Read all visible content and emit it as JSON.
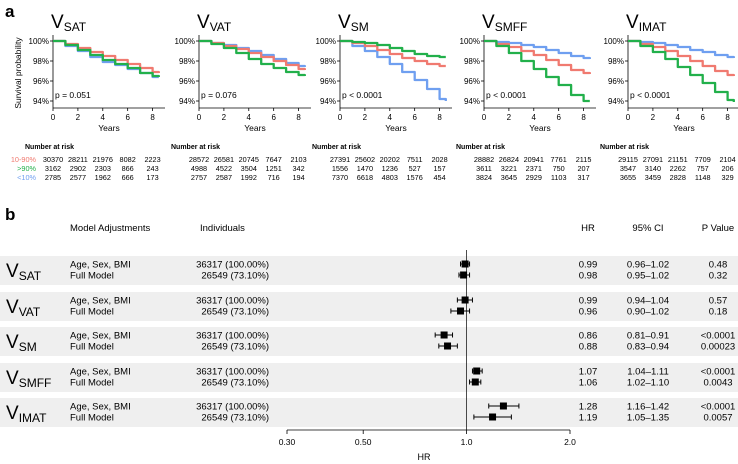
{
  "panel_labels": {
    "a": "a",
    "b": "b"
  },
  "colors": {
    "mid": "#f07a70",
    "high": "#22b04b",
    "low": "#6f9ff0"
  },
  "panel_a": {
    "y_axis_label": "Survival probability",
    "x_axis_label": "Years",
    "risk_title": "Number at risk",
    "legend_labels": [
      "10-90%",
      ">90%",
      "<10%"
    ],
    "y_ticks": [
      "100%",
      "98%",
      "96%",
      "94%"
    ],
    "x_ticks": [
      "0",
      "2",
      "4",
      "6",
      "8"
    ]
  },
  "chart_data": [
    {
      "type": "line",
      "name": "SAT",
      "title": "V",
      "subscript": "SAT",
      "pvalue": "p = 0.051",
      "xlabel": "Years",
      "ylabel": "Survival probability",
      "xlim": [
        0,
        9
      ],
      "ylim": [
        93.5,
        100.2
      ],
      "series": [
        {
          "name": "10-90%",
          "x": [
            0,
            1,
            2,
            3,
            4,
            5,
            6,
            7,
            8,
            8.5
          ],
          "y": [
            100,
            99.7,
            99.3,
            98.9,
            98.5,
            98.1,
            97.7,
            97.3,
            96.9,
            96.8
          ]
        },
        {
          "name": ">90%",
          "x": [
            0,
            1,
            2,
            3,
            4,
            5,
            6,
            7,
            8,
            8.5
          ],
          "y": [
            100,
            99.6,
            99.1,
            98.6,
            98.1,
            97.7,
            97.3,
            96.8,
            96.5,
            96.4
          ]
        },
        {
          "name": "<10%",
          "x": [
            0,
            1,
            2,
            3,
            4,
            5,
            6,
            7,
            8,
            8.5
          ],
          "y": [
            100,
            99.5,
            99.0,
            98.4,
            97.9,
            97.6,
            97.2,
            96.8,
            96.4,
            96.4
          ]
        }
      ],
      "risk_table": [
        [
          "30370",
          "28211",
          "21976",
          "8082",
          "2223"
        ],
        [
          "3162",
          "2902",
          "2303",
          "866",
          "243"
        ],
        [
          "2785",
          "2577",
          "1962",
          "666",
          "173"
        ]
      ]
    },
    {
      "type": "line",
      "name": "VAT",
      "title": "V",
      "subscript": "VAT",
      "pvalue": "p = 0.076",
      "xlabel": "Years",
      "ylabel": "Survival probability",
      "xlim": [
        0,
        9
      ],
      "ylim": [
        93.5,
        100.2
      ],
      "series": [
        {
          "name": "10-90%",
          "x": [
            0,
            1,
            2,
            3,
            4,
            5,
            6,
            7,
            8,
            8.5
          ],
          "y": [
            100,
            99.8,
            99.5,
            99.2,
            98.8,
            98.4,
            98.0,
            97.6,
            97.2,
            97.1
          ]
        },
        {
          "name": ">90%",
          "x": [
            0,
            1,
            2,
            3,
            4,
            5,
            6,
            7,
            8,
            8.5
          ],
          "y": [
            100,
            99.7,
            99.3,
            98.8,
            98.2,
            97.7,
            97.3,
            96.9,
            96.6,
            96.5
          ]
        },
        {
          "name": "<10%",
          "x": [
            0,
            1,
            2,
            3,
            4,
            5,
            6,
            7,
            8,
            8.5
          ],
          "y": [
            100,
            99.8,
            99.6,
            99.3,
            99.0,
            98.6,
            98.2,
            97.8,
            97.5,
            97.4
          ]
        }
      ],
      "risk_table": [
        [
          "28572",
          "26581",
          "20745",
          "7647",
          "2103"
        ],
        [
          "4988",
          "4522",
          "3504",
          "1251",
          "342"
        ],
        [
          "2757",
          "2587",
          "1992",
          "716",
          "194"
        ]
      ]
    },
    {
      "type": "line",
      "name": "SM",
      "title": "V",
      "subscript": "SM",
      "pvalue": "p < 0.0001",
      "xlabel": "Years",
      "ylabel": "Survival probability",
      "xlim": [
        0,
        9
      ],
      "ylim": [
        93.5,
        100.2
      ],
      "series": [
        {
          "name": "10-90%",
          "x": [
            0,
            1,
            2,
            3,
            4,
            5,
            6,
            7,
            8,
            8.5
          ],
          "y": [
            100,
            99.8,
            99.5,
            99.1,
            98.7,
            98.3,
            98.0,
            97.7,
            97.5,
            97.5
          ]
        },
        {
          "name": ">90%",
          "x": [
            0,
            1,
            2,
            3,
            4,
            5,
            6,
            7,
            8,
            8.5
          ],
          "y": [
            100,
            99.9,
            99.8,
            99.6,
            99.3,
            99.0,
            98.7,
            98.5,
            98.4,
            98.4
          ]
        },
        {
          "name": "<10%",
          "x": [
            0,
            1,
            2,
            3,
            4,
            5,
            6,
            7,
            8,
            8.5
          ],
          "y": [
            100,
            99.5,
            99.0,
            98.4,
            97.7,
            96.9,
            96.1,
            95.2,
            94.2,
            94.0
          ]
        }
      ],
      "risk_table": [
        [
          "27391",
          "25602",
          "20202",
          "7511",
          "2028"
        ],
        [
          "1556",
          "1470",
          "1236",
          "527",
          "157"
        ],
        [
          "7370",
          "6618",
          "4803",
          "1576",
          "454"
        ]
      ]
    },
    {
      "type": "line",
      "name": "SMFF",
      "title": "V",
      "subscript": "SMFF",
      "pvalue": "p < 0.0001",
      "xlabel": "Years",
      "ylabel": "Survival probability",
      "xlim": [
        0,
        9
      ],
      "ylim": [
        93.5,
        100.2
      ],
      "series": [
        {
          "name": "10-90%",
          "x": [
            0,
            1,
            2,
            3,
            4,
            5,
            6,
            7,
            8,
            8.5
          ],
          "y": [
            100,
            99.7,
            99.4,
            99.0,
            98.6,
            98.1,
            97.6,
            97.1,
            96.8,
            96.7
          ]
        },
        {
          "name": ">90%",
          "x": [
            0,
            1,
            2,
            3,
            4,
            5,
            6,
            7,
            8,
            8.5
          ],
          "y": [
            100,
            99.5,
            98.8,
            98.0,
            97.2,
            96.4,
            95.6,
            94.6,
            94.0,
            94.0
          ]
        },
        {
          "name": "<10%",
          "x": [
            0,
            1,
            2,
            3,
            4,
            5,
            6,
            7,
            8,
            8.5
          ],
          "y": [
            100,
            99.9,
            99.8,
            99.6,
            99.4,
            99.1,
            98.8,
            98.5,
            98.3,
            98.2
          ]
        }
      ],
      "risk_table": [
        [
          "28882",
          "26824",
          "20941",
          "7761",
          "2115"
        ],
        [
          "3611",
          "3221",
          "2371",
          "750",
          "207"
        ],
        [
          "3824",
          "3645",
          "2929",
          "1103",
          "317"
        ]
      ]
    },
    {
      "type": "line",
      "name": "IMAT",
      "title": "V",
      "subscript": "IMAT",
      "pvalue": "p < 0.0001",
      "xlabel": "Years",
      "ylabel": "Survival probability",
      "xlim": [
        0,
        9
      ],
      "ylim": [
        93.5,
        100.2
      ],
      "series": [
        {
          "name": "10-90%",
          "x": [
            0,
            1,
            2,
            3,
            4,
            5,
            6,
            7,
            8,
            8.5
          ],
          "y": [
            100,
            99.7,
            99.4,
            99.0,
            98.5,
            98.0,
            97.5,
            97.0,
            96.6,
            96.5
          ]
        },
        {
          "name": ">90%",
          "x": [
            0,
            1,
            2,
            3,
            4,
            5,
            6,
            7,
            8,
            8.5
          ],
          "y": [
            100,
            99.5,
            98.9,
            98.2,
            97.4,
            96.6,
            95.8,
            94.9,
            94.1,
            93.9
          ]
        },
        {
          "name": "<10%",
          "x": [
            0,
            1,
            2,
            3,
            4,
            5,
            6,
            7,
            8,
            8.5
          ],
          "y": [
            100,
            99.9,
            99.8,
            99.6,
            99.4,
            99.1,
            98.9,
            98.6,
            98.4,
            98.3
          ]
        }
      ],
      "risk_table": [
        [
          "29115",
          "27091",
          "21151",
          "7709",
          "2104"
        ],
        [
          "3547",
          "3140",
          "2262",
          "757",
          "206"
        ],
        [
          "3655",
          "3459",
          "2828",
          "1148",
          "329"
        ]
      ]
    },
    {
      "type": "scatter",
      "name": "forest",
      "headers": {
        "model": "Model Adjustments",
        "individuals": "Individuals",
        "hr": "HR",
        "ci": "95% CI",
        "p": "P Value"
      },
      "xlabel": "HR",
      "x_scale": "log",
      "xlim": [
        0.3,
        2.0
      ],
      "x_ticks": [
        0.3,
        0.5,
        1.0,
        2.0
      ],
      "x_tick_labels": [
        "0.30",
        "0.50",
        "1.0",
        "2.0"
      ],
      "reference_line": 1.0,
      "groups": [
        {
          "title": "V",
          "subscript": "SAT",
          "rows": [
            {
              "model": "Age, Sex, BMI",
              "individuals": "36317 (100.00%)",
              "hr": 0.99,
              "lo": 0.96,
              "hi": 1.02,
              "hr_text": "0.99",
              "ci_text": "0.96–1.02",
              "p": "0.48"
            },
            {
              "model": "Full Model",
              "individuals": "26549 (73.10%)",
              "hr": 0.98,
              "lo": 0.95,
              "hi": 1.02,
              "hr_text": "0.98",
              "ci_text": "0.95–1.02",
              "p": "0.32"
            }
          ]
        },
        {
          "title": "V",
          "subscript": "VAT",
          "rows": [
            {
              "model": "Age, Sex, BMI",
              "individuals": "36317 (100.00%)",
              "hr": 0.99,
              "lo": 0.94,
              "hi": 1.04,
              "hr_text": "0.99",
              "ci_text": "0.94–1.04",
              "p": "0.57"
            },
            {
              "model": "Full Model",
              "individuals": "26549 (73.10%)",
              "hr": 0.96,
              "lo": 0.9,
              "hi": 1.02,
              "hr_text": "0.96",
              "ci_text": "0.90–1.02",
              "p": "0.18"
            }
          ]
        },
        {
          "title": "V",
          "subscript": "SM",
          "rows": [
            {
              "model": "Age, Sex, BMI",
              "individuals": "36317 (100.00%)",
              "hr": 0.86,
              "lo": 0.81,
              "hi": 0.91,
              "hr_text": "0.86",
              "ci_text": "0.81–0.91",
              "p": "<0.0001"
            },
            {
              "model": "Full Model",
              "individuals": "26549 (73.10%)",
              "hr": 0.88,
              "lo": 0.83,
              "hi": 0.94,
              "hr_text": "0.88",
              "ci_text": "0.83–0.94",
              "p": "0.00023"
            }
          ]
        },
        {
          "title": "V",
          "subscript": "SMFF",
          "rows": [
            {
              "model": "Age, Sex, BMI",
              "individuals": "36317 (100.00%)",
              "hr": 1.07,
              "lo": 1.04,
              "hi": 1.11,
              "hr_text": "1.07",
              "ci_text": "1.04–1.11",
              "p": "<0.0001"
            },
            {
              "model": "Full Model",
              "individuals": "26549 (73.10%)",
              "hr": 1.06,
              "lo": 1.02,
              "hi": 1.1,
              "hr_text": "1.06",
              "ci_text": "1.02–1.10",
              "p": "0.0043"
            }
          ]
        },
        {
          "title": "V",
          "subscript": "IMAT",
          "rows": [
            {
              "model": "Age, Sex, BMI",
              "individuals": "36317 (100.00%)",
              "hr": 1.28,
              "lo": 1.16,
              "hi": 1.42,
              "hr_text": "1.28",
              "ci_text": "1.16–1.42",
              "p": "<0.0001"
            },
            {
              "model": "Full Model",
              "individuals": "26549 (73.10%)",
              "hr": 1.19,
              "lo": 1.05,
              "hi": 1.35,
              "hr_text": "1.19",
              "ci_text": "1.05–1.35",
              "p": "0.0057"
            }
          ]
        }
      ]
    }
  ]
}
